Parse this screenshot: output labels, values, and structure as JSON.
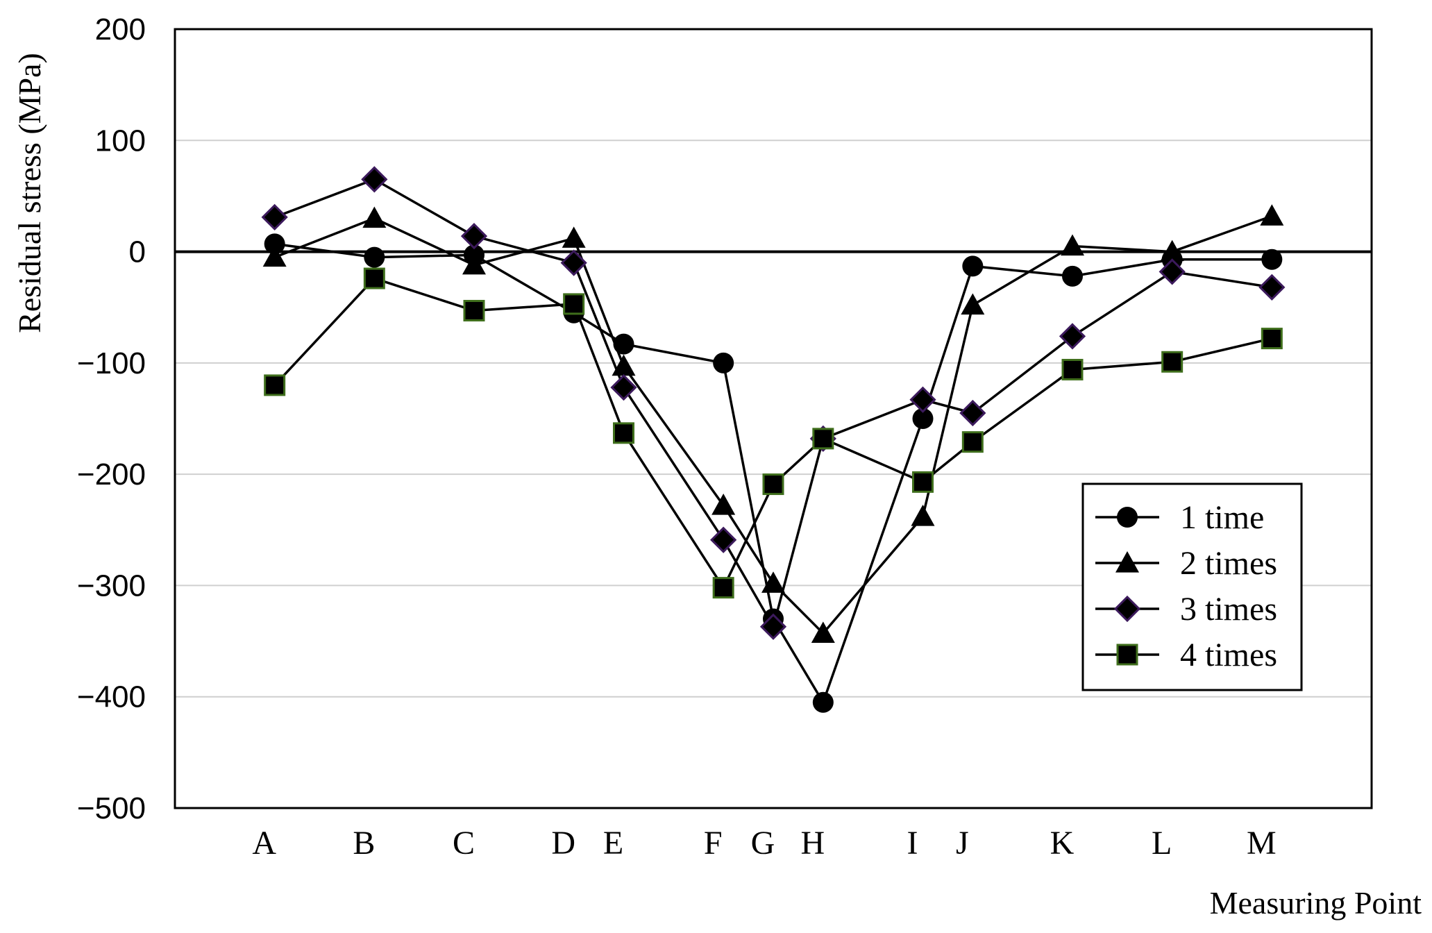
{
  "chart_data": {
    "type": "line",
    "xlabel": "Measuring Point",
    "ylabel": "Residual stress (MPa)",
    "ylim": [
      -500,
      200
    ],
    "yticks": [
      200,
      100,
      0,
      -100,
      -200,
      -300,
      -400,
      -500
    ],
    "ytick_labels": [
      "200",
      "100",
      "0",
      "−100",
      "−200",
      "−300",
      "−400",
      "−500"
    ],
    "grid": true,
    "legend": "lower-right",
    "categories": [
      {
        "label": "A",
        "x": 1.0
      },
      {
        "label": "B",
        "x": 2.0
      },
      {
        "label": "C",
        "x": 3.0
      },
      {
        "label": "D",
        "x": 4.0
      },
      {
        "label": "E",
        "x": 4.5
      },
      {
        "label": "F",
        "x": 5.5
      },
      {
        "label": "G",
        "x": 6.0
      },
      {
        "label": "H",
        "x": 6.5
      },
      {
        "label": "I",
        "x": 7.5
      },
      {
        "label": "J",
        "x": 8.0
      },
      {
        "label": "K",
        "x": 9.0
      },
      {
        "label": "L",
        "x": 10.0
      },
      {
        "label": "M",
        "x": 11.0
      }
    ],
    "series": [
      {
        "name": "1 time",
        "marker": "circle",
        "values": [
          7,
          -5,
          -3,
          -55,
          -83,
          -100,
          -330,
          -405,
          -150,
          -13,
          -22,
          -7,
          -7
        ]
      },
      {
        "name": "2 times",
        "marker": "triangle",
        "values": [
          -5,
          30,
          -12,
          12,
          -103,
          -228,
          -298,
          -343,
          -238,
          -48,
          5,
          0,
          32
        ]
      },
      {
        "name": "3 times",
        "marker": "diamond",
        "values": [
          31,
          65,
          14,
          -10,
          -122,
          -259,
          -337,
          -168,
          -133,
          -145,
          -76,
          -18,
          -32
        ]
      },
      {
        "name": "4 times",
        "marker": "square",
        "values": [
          -120,
          -24,
          -53,
          -47,
          -163,
          -302,
          -209,
          -168,
          -207,
          -171,
          -106,
          -99,
          -78
        ]
      }
    ],
    "colors": {
      "line": "#000000",
      "diamond_edge": "#3c1a5c",
      "square_edge": "#3f6e1c",
      "grid": "#cfcfcf"
    }
  }
}
